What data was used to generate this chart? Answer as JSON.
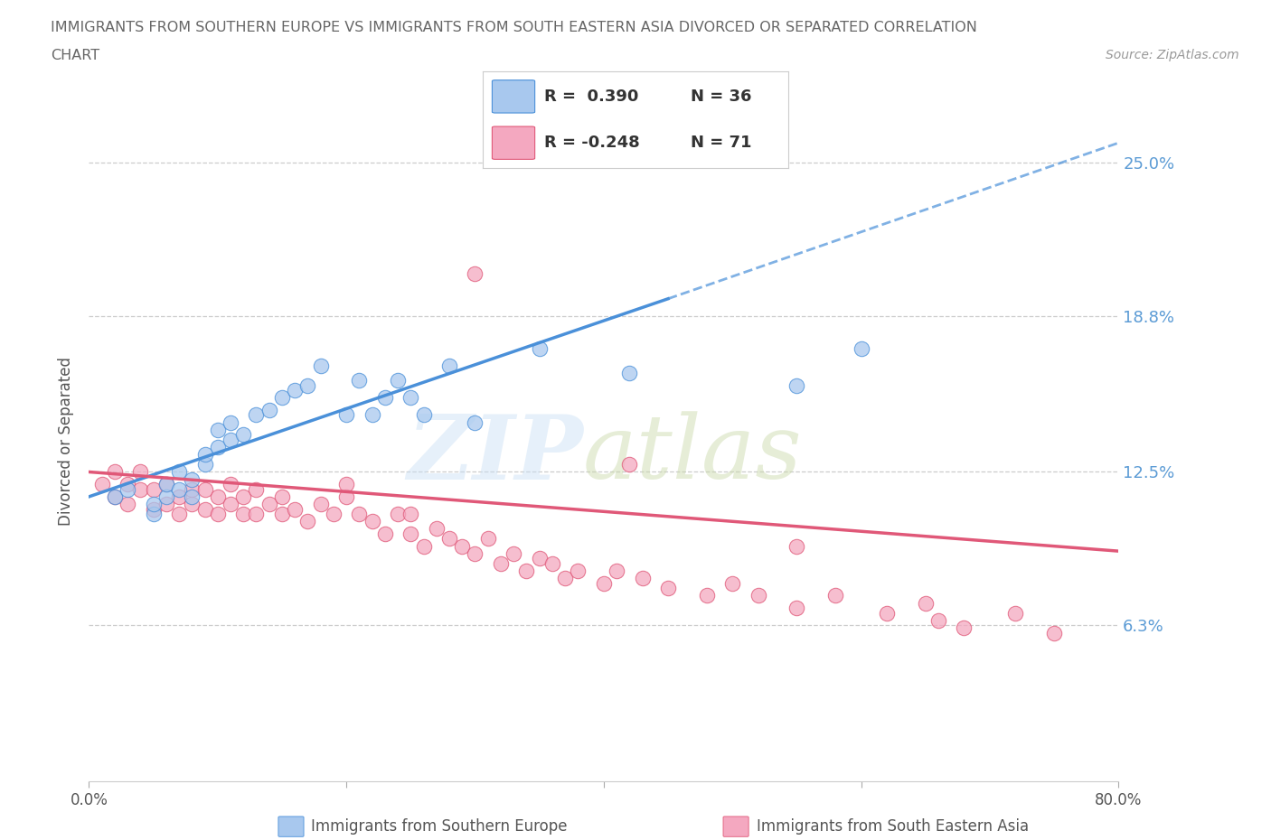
{
  "title_line1": "IMMIGRANTS FROM SOUTHERN EUROPE VS IMMIGRANTS FROM SOUTH EASTERN ASIA DIVORCED OR SEPARATED CORRELATION",
  "title_line2": "CHART",
  "source": "Source: ZipAtlas.com",
  "ylabel": "Divorced or Separated",
  "xlim": [
    0.0,
    0.8
  ],
  "ylim": [
    0.0,
    0.275
  ],
  "yticks": [
    0.0,
    0.063,
    0.125,
    0.188,
    0.25
  ],
  "ytick_labels": [
    "",
    "6.3%",
    "12.5%",
    "18.8%",
    "25.0%"
  ],
  "xticks": [
    0.0,
    0.2,
    0.4,
    0.6,
    0.8
  ],
  "xtick_labels": [
    "0.0%",
    "",
    "",
    "",
    "80.0%"
  ],
  "legend_r1": "R =  0.390",
  "legend_n1": "N = 36",
  "legend_r2": "R = -0.248",
  "legend_n2": "N = 71",
  "blue_color": "#A8C8EE",
  "pink_color": "#F4A8C0",
  "blue_line_color": "#4A90D9",
  "pink_line_color": "#E05878",
  "grid_color": "#CCCCCC",
  "title_color": "#555555",
  "axis_label_color": "#555555",
  "blue_scatter_x": [
    0.02,
    0.03,
    0.05,
    0.05,
    0.06,
    0.06,
    0.07,
    0.07,
    0.08,
    0.08,
    0.09,
    0.09,
    0.1,
    0.1,
    0.11,
    0.11,
    0.12,
    0.13,
    0.14,
    0.15,
    0.16,
    0.17,
    0.18,
    0.2,
    0.21,
    0.22,
    0.23,
    0.24,
    0.25,
    0.26,
    0.28,
    0.3,
    0.35,
    0.42,
    0.55,
    0.6
  ],
  "blue_scatter_y": [
    0.115,
    0.118,
    0.108,
    0.112,
    0.115,
    0.12,
    0.118,
    0.125,
    0.115,
    0.122,
    0.128,
    0.132,
    0.135,
    0.142,
    0.138,
    0.145,
    0.14,
    0.148,
    0.15,
    0.155,
    0.158,
    0.16,
    0.168,
    0.148,
    0.162,
    0.148,
    0.155,
    0.162,
    0.155,
    0.148,
    0.168,
    0.145,
    0.175,
    0.165,
    0.16,
    0.175
  ],
  "pink_scatter_x": [
    0.01,
    0.02,
    0.02,
    0.03,
    0.03,
    0.04,
    0.04,
    0.05,
    0.05,
    0.06,
    0.06,
    0.07,
    0.07,
    0.08,
    0.08,
    0.09,
    0.09,
    0.1,
    0.1,
    0.11,
    0.11,
    0.12,
    0.12,
    0.13,
    0.13,
    0.14,
    0.15,
    0.15,
    0.16,
    0.17,
    0.18,
    0.19,
    0.2,
    0.2,
    0.21,
    0.22,
    0.23,
    0.24,
    0.25,
    0.25,
    0.26,
    0.27,
    0.28,
    0.29,
    0.3,
    0.31,
    0.32,
    0.33,
    0.34,
    0.35,
    0.36,
    0.37,
    0.38,
    0.4,
    0.41,
    0.43,
    0.45,
    0.48,
    0.5,
    0.52,
    0.55,
    0.58,
    0.62,
    0.65,
    0.66,
    0.68,
    0.72,
    0.75,
    0.3,
    0.42,
    0.55
  ],
  "pink_scatter_y": [
    0.12,
    0.115,
    0.125,
    0.112,
    0.12,
    0.118,
    0.125,
    0.11,
    0.118,
    0.112,
    0.12,
    0.108,
    0.115,
    0.112,
    0.118,
    0.11,
    0.118,
    0.108,
    0.115,
    0.112,
    0.12,
    0.108,
    0.115,
    0.108,
    0.118,
    0.112,
    0.108,
    0.115,
    0.11,
    0.105,
    0.112,
    0.108,
    0.115,
    0.12,
    0.108,
    0.105,
    0.1,
    0.108,
    0.1,
    0.108,
    0.095,
    0.102,
    0.098,
    0.095,
    0.092,
    0.098,
    0.088,
    0.092,
    0.085,
    0.09,
    0.088,
    0.082,
    0.085,
    0.08,
    0.085,
    0.082,
    0.078,
    0.075,
    0.08,
    0.075,
    0.07,
    0.075,
    0.068,
    0.072,
    0.065,
    0.062,
    0.068,
    0.06,
    0.205,
    0.128,
    0.095
  ],
  "blue_line_x0": 0.0,
  "blue_line_y0": 0.115,
  "blue_line_x1": 0.45,
  "blue_line_y1": 0.195,
  "blue_line_dash_x0": 0.45,
  "blue_line_dash_y0": 0.195,
  "blue_line_dash_x1": 0.8,
  "blue_line_dash_y1": 0.258,
  "pink_line_x0": 0.0,
  "pink_line_y0": 0.125,
  "pink_line_x1": 0.8,
  "pink_line_y1": 0.093
}
